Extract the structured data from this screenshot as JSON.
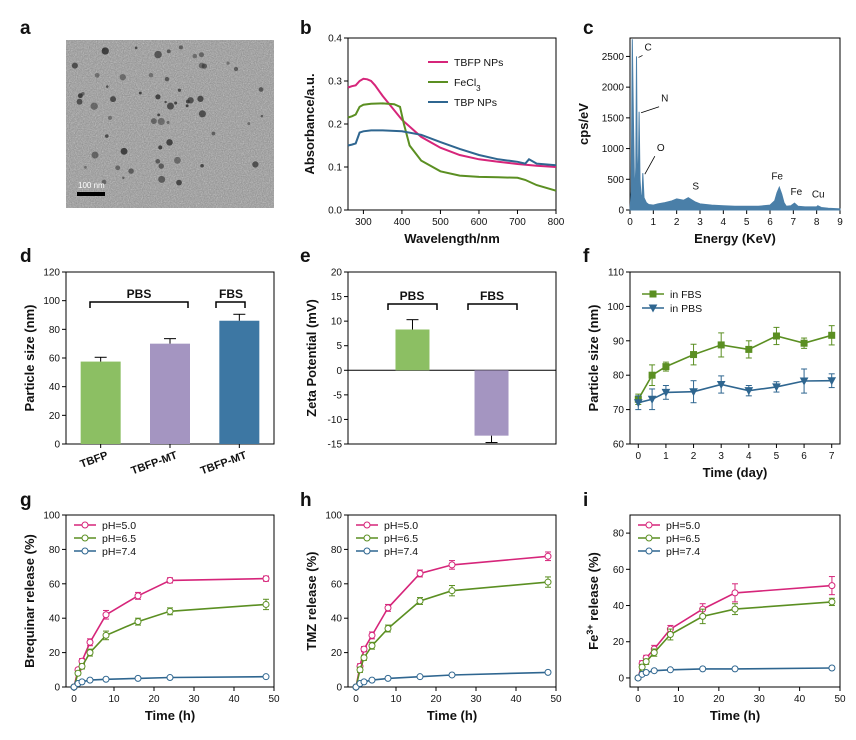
{
  "panels": {
    "a": {
      "letter": "a",
      "scale_bar_label": "100 nm"
    },
    "b": {
      "letter": "b"
    },
    "c": {
      "letter": "c"
    },
    "d": {
      "letter": "d",
      "group_labels": [
        "PBS",
        "FBS"
      ]
    },
    "e": {
      "letter": "e",
      "group_labels": [
        "PBS",
        "FBS"
      ]
    },
    "f": {
      "letter": "f"
    },
    "g": {
      "letter": "g"
    },
    "h": {
      "letter": "h"
    },
    "i": {
      "letter": "i"
    }
  },
  "colors": {
    "pink": "#d6257a",
    "green": "#5b8f22",
    "blue": "#2f6690",
    "bar_green": "#8cbf63",
    "bar_purple": "#a495c1",
    "bar_blue": "#3d77a3",
    "edx": "#4a7fa8"
  },
  "chart_data": [
    {
      "id": "b",
      "type": "line",
      "xlabel": "Wavelength/nm",
      "ylabel": "Absorbance/a.u.",
      "xlim": [
        260,
        800
      ],
      "ylim": [
        0,
        0.4
      ],
      "xticks": [
        300,
        400,
        500,
        600,
        700,
        800
      ],
      "yticks": [
        0.0,
        0.1,
        0.2,
        0.3,
        0.4
      ],
      "ytick_labels": [
        "0.0",
        "0.1",
        "0.2",
        "0.3",
        "0.4"
      ],
      "legend_position": "top-right",
      "series": [
        {
          "name": "TBFP NPs",
          "color": "#d6257a",
          "x": [
            260,
            270,
            280,
            290,
            300,
            310,
            320,
            330,
            350,
            400,
            450,
            500,
            550,
            600,
            650,
            700,
            750,
            800
          ],
          "y": [
            0.285,
            0.288,
            0.29,
            0.3,
            0.305,
            0.304,
            0.3,
            0.29,
            0.265,
            0.21,
            0.17,
            0.145,
            0.128,
            0.118,
            0.112,
            0.107,
            0.103,
            0.1
          ]
        },
        {
          "name": "FeCl3",
          "color": "#5b8f22",
          "x": [
            260,
            270,
            280,
            290,
            300,
            320,
            350,
            380,
            395,
            405,
            420,
            450,
            500,
            550,
            600,
            650,
            700,
            720,
            750,
            800
          ],
          "y": [
            0.215,
            0.218,
            0.222,
            0.24,
            0.245,
            0.247,
            0.248,
            0.246,
            0.24,
            0.2,
            0.15,
            0.115,
            0.09,
            0.08,
            0.077,
            0.076,
            0.075,
            0.07,
            0.058,
            0.045
          ]
        },
        {
          "name": "TBP NPs",
          "color": "#2f6690",
          "x": [
            260,
            270,
            280,
            290,
            300,
            320,
            350,
            400,
            450,
            500,
            550,
            600,
            650,
            700,
            720,
            730,
            750,
            800
          ],
          "y": [
            0.15,
            0.152,
            0.155,
            0.18,
            0.183,
            0.185,
            0.185,
            0.183,
            0.175,
            0.158,
            0.142,
            0.128,
            0.118,
            0.112,
            0.108,
            0.118,
            0.108,
            0.104
          ]
        }
      ]
    },
    {
      "id": "c",
      "type": "area",
      "xlabel": "Energy (KeV)",
      "ylabel": "cps/eV",
      "xlim": [
        0,
        9
      ],
      "ylim": [
        0,
        2800
      ],
      "xticks": [
        0,
        1,
        2,
        3,
        4,
        5,
        6,
        7,
        8,
        9
      ],
      "yticks": [
        0,
        500,
        1000,
        1500,
        2000,
        2500
      ],
      "x": [
        0,
        0.05,
        0.1,
        0.15,
        0.2,
        0.25,
        0.28,
        0.31,
        0.35,
        0.39,
        0.43,
        0.48,
        0.52,
        0.55,
        0.6,
        0.7,
        0.8,
        1,
        1.2,
        1.5,
        1.8,
        2,
        2.3,
        2.5,
        2.8,
        3,
        3.5,
        4,
        4.5,
        5,
        5.5,
        6,
        6.2,
        6.3,
        6.4,
        6.5,
        6.6,
        6.7,
        6.9,
        7.05,
        7.2,
        7.5,
        8.0,
        8.05,
        8.2,
        8.5,
        9
      ],
      "values": [
        0,
        300,
        2780,
        1400,
        200,
        700,
        2500,
        900,
        350,
        1600,
        500,
        180,
        250,
        600,
        200,
        120,
        90,
        80,
        100,
        120,
        150,
        180,
        160,
        200,
        130,
        100,
        80,
        70,
        60,
        60,
        60,
        80,
        150,
        280,
        370,
        260,
        120,
        60,
        70,
        110,
        60,
        50,
        50,
        70,
        40,
        30,
        20
      ],
      "annotations": [
        {
          "label": "C",
          "x": 0.28,
          "y": 2500
        },
        {
          "label": "N",
          "x": 0.39,
          "y": 1600
        },
        {
          "label": "O",
          "x": 0.55,
          "y": 600
        },
        {
          "label": "S",
          "x": 2.5,
          "y": 200
        },
        {
          "label": "Fe",
          "x": 6.4,
          "y": 370
        },
        {
          "label": "Fe",
          "x": 7.05,
          "y": 110
        },
        {
          "label": "Cu",
          "x": 8.05,
          "y": 70
        }
      ]
    },
    {
      "id": "d",
      "type": "bar",
      "ylabel": "Particle size (nm)",
      "categories": [
        "TBFP",
        "TBFP-MT",
        "TBFP-MT"
      ],
      "values": [
        57.5,
        70,
        86
      ],
      "errors": [
        3,
        3.5,
        4.5
      ],
      "colors": [
        "#8cbf63",
        "#a495c1",
        "#3d77a3"
      ],
      "ylim": [
        0,
        120
      ],
      "yticks": [
        0,
        20,
        40,
        60,
        80,
        100,
        120
      ]
    },
    {
      "id": "e",
      "type": "bar",
      "ylabel": "Zeta Potential (mV)",
      "categories": [
        "",
        ""
      ],
      "values": [
        8.3,
        -13.3
      ],
      "errors": [
        2,
        1.4
      ],
      "colors": [
        "#8cbf63",
        "#a495c1"
      ],
      "ylim": [
        -15,
        20
      ],
      "yticks": [
        -15,
        -10,
        -5,
        0,
        5,
        10,
        15,
        20
      ]
    },
    {
      "id": "f",
      "type": "line",
      "xlabel": "Time (day)",
      "ylabel": "Particle size (nm)",
      "xlim": [
        -0.3,
        7.3
      ],
      "ylim": [
        60,
        110
      ],
      "xticks": [
        0,
        1,
        2,
        3,
        4,
        5,
        6,
        7
      ],
      "yticks": [
        60,
        70,
        80,
        90,
        100,
        110
      ],
      "legend_position": "top-left",
      "series": [
        {
          "name": "in FBS",
          "color": "#5b8f22",
          "marker": "square",
          "x": [
            0,
            0.5,
            1,
            2,
            3,
            4,
            5,
            6,
            7
          ],
          "y": [
            73,
            80,
            82.5,
            86,
            88.8,
            87.5,
            91.4,
            89.3,
            91.6
          ],
          "errors": [
            1.5,
            3,
            1.3,
            3,
            3.5,
            2.5,
            2.5,
            1.5,
            2.8
          ]
        },
        {
          "name": "in PBS",
          "color": "#2f6690",
          "marker": "triangle-down",
          "x": [
            0,
            0.5,
            1,
            2,
            3,
            4,
            5,
            6,
            7
          ],
          "y": [
            72,
            73,
            75,
            75.2,
            77.3,
            75.5,
            76.6,
            78.3,
            78.4
          ],
          "errors": [
            2,
            3,
            2,
            3.2,
            2.5,
            1.5,
            1.5,
            3.5,
            2
          ]
        }
      ]
    },
    {
      "id": "g",
      "type": "line",
      "xlabel": "Time (h)",
      "ylabel": "Brequinar release (%)",
      "xlim": [
        -2,
        50
      ],
      "ylim": [
        0,
        100
      ],
      "xticks": [
        0,
        10,
        20,
        30,
        40,
        50
      ],
      "yticks": [
        0,
        20,
        40,
        60,
        80,
        100
      ],
      "legend_position": "top-left",
      "series": [
        {
          "name": "pH=5.0",
          "color": "#d6257a",
          "x": [
            0,
            1,
            2,
            4,
            8,
            16,
            24,
            48
          ],
          "y": [
            0,
            10,
            15,
            26,
            42,
            53,
            62,
            63
          ],
          "errors": [
            0,
            1,
            1.5,
            2,
            2.5,
            2,
            1.5,
            1.5
          ]
        },
        {
          "name": "pH=6.5",
          "color": "#5b8f22",
          "x": [
            0,
            1,
            2,
            4,
            8,
            16,
            24,
            48
          ],
          "y": [
            0,
            8,
            12,
            20,
            30,
            38,
            44,
            48
          ],
          "errors": [
            0,
            1,
            1.5,
            2,
            2.5,
            2,
            2,
            3
          ]
        },
        {
          "name": "pH=7.4",
          "color": "#2f6690",
          "x": [
            0,
            1,
            2,
            4,
            8,
            16,
            24,
            48
          ],
          "y": [
            0,
            2,
            3,
            4,
            4.5,
            5,
            5.5,
            6
          ],
          "errors": [
            0,
            0.5,
            0.5,
            0.5,
            0.5,
            0.5,
            0.5,
            0.5
          ]
        }
      ]
    },
    {
      "id": "h",
      "type": "line",
      "xlabel": "Time (h)",
      "ylabel": "TMZ release (%)",
      "xlim": [
        -2,
        50
      ],
      "ylim": [
        0,
        100
      ],
      "xticks": [
        0,
        10,
        20,
        30,
        40,
        50
      ],
      "yticks": [
        0,
        20,
        40,
        60,
        80,
        100
      ],
      "legend_position": "top-left",
      "series": [
        {
          "name": "pH=5.0",
          "color": "#d6257a",
          "x": [
            0,
            1,
            2,
            4,
            8,
            16,
            24,
            48
          ],
          "y": [
            0,
            12,
            22,
            30,
            46,
            66,
            71,
            76
          ],
          "errors": [
            0,
            1.5,
            1.5,
            2,
            2,
            2,
            2.5,
            2.5
          ]
        },
        {
          "name": "pH=6.5",
          "color": "#5b8f22",
          "x": [
            0,
            1,
            2,
            4,
            8,
            16,
            24,
            48
          ],
          "y": [
            0,
            10,
            17,
            24,
            34,
            50,
            56,
            61
          ],
          "errors": [
            0,
            1.5,
            1.5,
            2,
            2,
            2,
            3,
            3
          ]
        },
        {
          "name": "pH=7.4",
          "color": "#2f6690",
          "x": [
            0,
            1,
            2,
            4,
            8,
            16,
            24,
            48
          ],
          "y": [
            0,
            2,
            3,
            4,
            5,
            6,
            7,
            8.5
          ],
          "errors": [
            0,
            0.5,
            0.5,
            0.5,
            0.5,
            0.5,
            0.5,
            0.5
          ]
        }
      ]
    },
    {
      "id": "i",
      "type": "line",
      "xlabel": "Time (h)",
      "ylabel": "Fe3+ release (%)",
      "xlim": [
        -2,
        50
      ],
      "ylim": [
        -5,
        90
      ],
      "xticks": [
        0,
        10,
        20,
        30,
        40,
        50
      ],
      "yticks": [
        0,
        20,
        40,
        60,
        80
      ],
      "legend_position": "top-left",
      "series": [
        {
          "name": "pH=5.0",
          "color": "#d6257a",
          "x": [
            0,
            1,
            2,
            4,
            8,
            16,
            24,
            48
          ],
          "y": [
            0,
            8,
            11,
            16,
            27,
            38,
            47,
            51
          ],
          "errors": [
            0,
            1.5,
            1.5,
            2,
            2,
            3,
            5,
            5
          ]
        },
        {
          "name": "pH=6.5",
          "color": "#5b8f22",
          "x": [
            0,
            1,
            2,
            4,
            8,
            16,
            24,
            48
          ],
          "y": [
            0,
            6,
            9,
            14,
            24,
            34,
            38,
            42
          ],
          "errors": [
            0,
            1.5,
            1.5,
            2,
            3,
            4,
            3,
            2
          ]
        },
        {
          "name": "pH=7.4",
          "color": "#2f6690",
          "x": [
            0,
            1,
            2,
            4,
            8,
            16,
            24,
            48
          ],
          "y": [
            0,
            2,
            3,
            4,
            4.5,
            5,
            5,
            5.5
          ],
          "errors": [
            0,
            0.5,
            0.5,
            0.5,
            0.5,
            0.5,
            0.5,
            0.5
          ]
        }
      ]
    }
  ]
}
